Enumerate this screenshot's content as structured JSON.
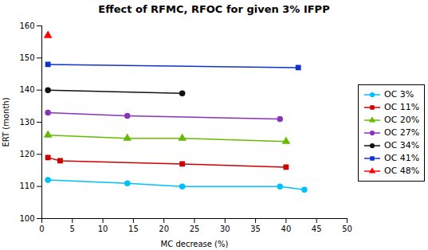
{
  "chart_data": {
    "type": "line",
    "title": "Effect of RFMC, RFOC for given 3% IFPP",
    "xlabel": "MC decrease (%)",
    "ylabel": "ERT (month)",
    "xlim": [
      0,
      50
    ],
    "ylim": [
      100,
      160
    ],
    "xticks": [
      0,
      5,
      10,
      15,
      20,
      25,
      30,
      35,
      40,
      45,
      50
    ],
    "yticks": [
      100,
      110,
      120,
      130,
      140,
      150,
      160
    ],
    "grid": false,
    "legend": "right",
    "series": [
      {
        "name": "OC 3%",
        "color": "#00BFFF",
        "marker": "circle",
        "x": [
          1,
          14,
          23,
          39,
          43
        ],
        "values": [
          112,
          111,
          110,
          110,
          109
        ]
      },
      {
        "name": "OC 11%",
        "color": "#CC0000",
        "marker": "square",
        "x": [
          1,
          3,
          23,
          40
        ],
        "values": [
          119,
          118,
          117,
          116
        ]
      },
      {
        "name": "OC 20%",
        "color": "#66BB00",
        "marker": "triangle",
        "x": [
          1,
          14,
          23,
          40
        ],
        "values": [
          126,
          125,
          125,
          124
        ]
      },
      {
        "name": "OC 27%",
        "color": "#8833BB",
        "marker": "circle",
        "x": [
          1,
          14,
          39
        ],
        "values": [
          133,
          132,
          131
        ]
      },
      {
        "name": "OC 34%",
        "color": "#111111",
        "marker": "circle",
        "x": [
          1,
          23
        ],
        "values": [
          140,
          139
        ]
      },
      {
        "name": "OC 41%",
        "color": "#1133CC",
        "marker": "square",
        "x": [
          1,
          42
        ],
        "values": [
          148,
          147
        ]
      },
      {
        "name": "OC 48%",
        "color": "#FF0000",
        "marker": "triangle",
        "x": [
          1
        ],
        "values": [
          157
        ]
      }
    ]
  }
}
